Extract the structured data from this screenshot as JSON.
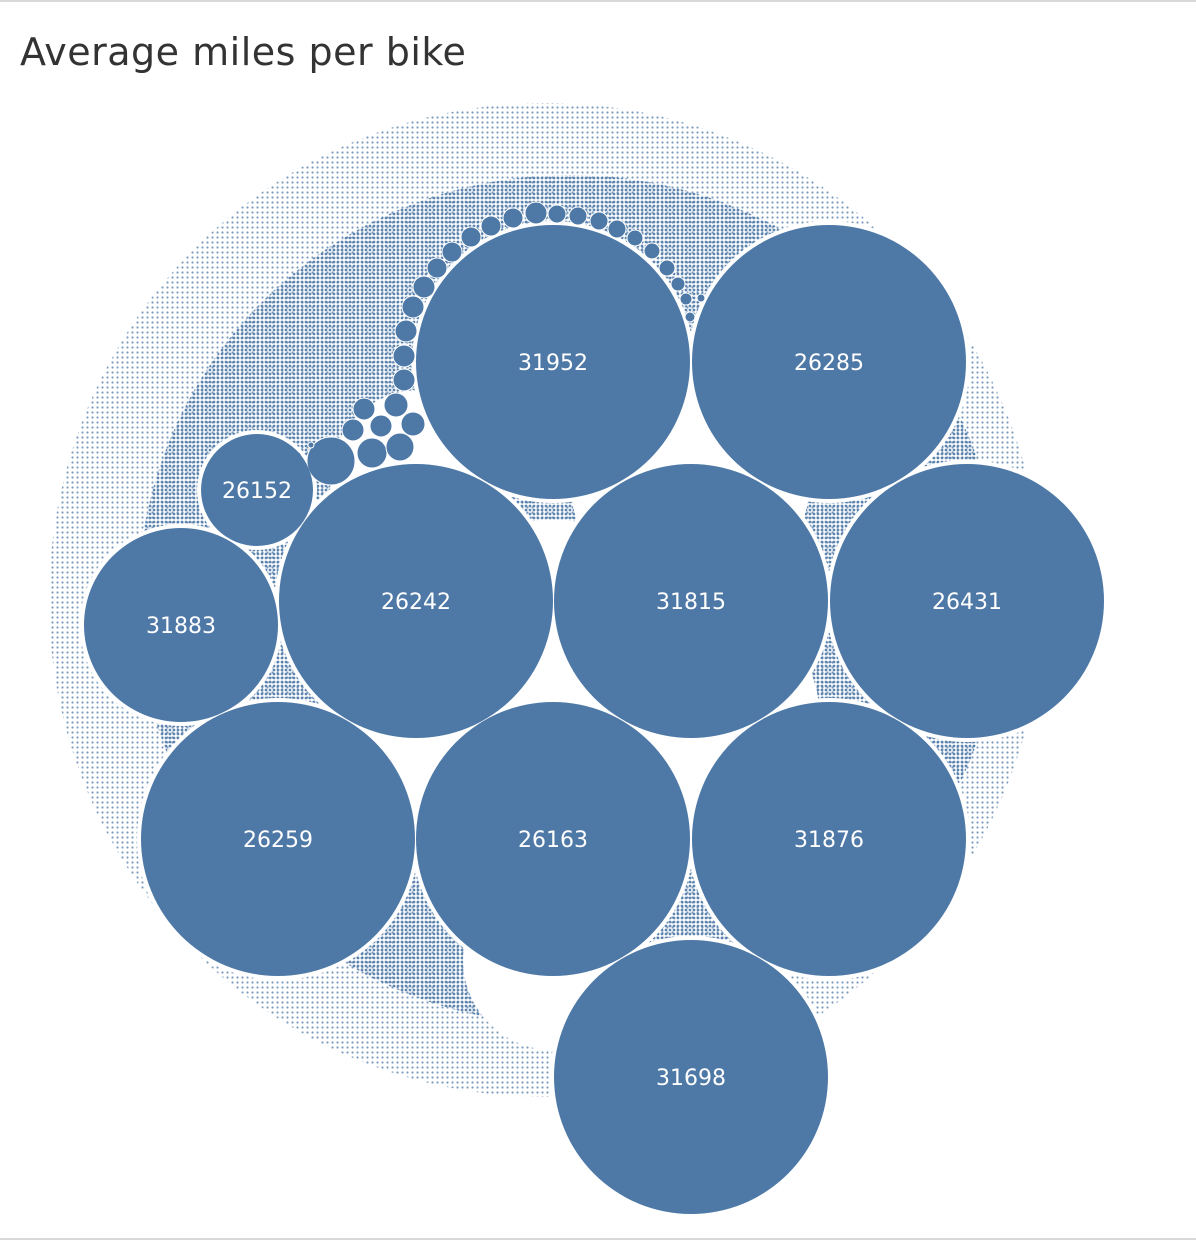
{
  "chart_data": {
    "type": "packed-bubble",
    "title": "Average miles per bike",
    "color": "#4e79a7",
    "labeled_bubbles": [
      {
        "label": "31952"
      },
      {
        "label": "26285"
      },
      {
        "label": "26152"
      },
      {
        "label": "31883"
      },
      {
        "label": "26242"
      },
      {
        "label": "31815"
      },
      {
        "label": "26431"
      },
      {
        "label": "26259"
      },
      {
        "label": "26163"
      },
      {
        "label": "31876"
      },
      {
        "label": "31698"
      }
    ]
  }
}
